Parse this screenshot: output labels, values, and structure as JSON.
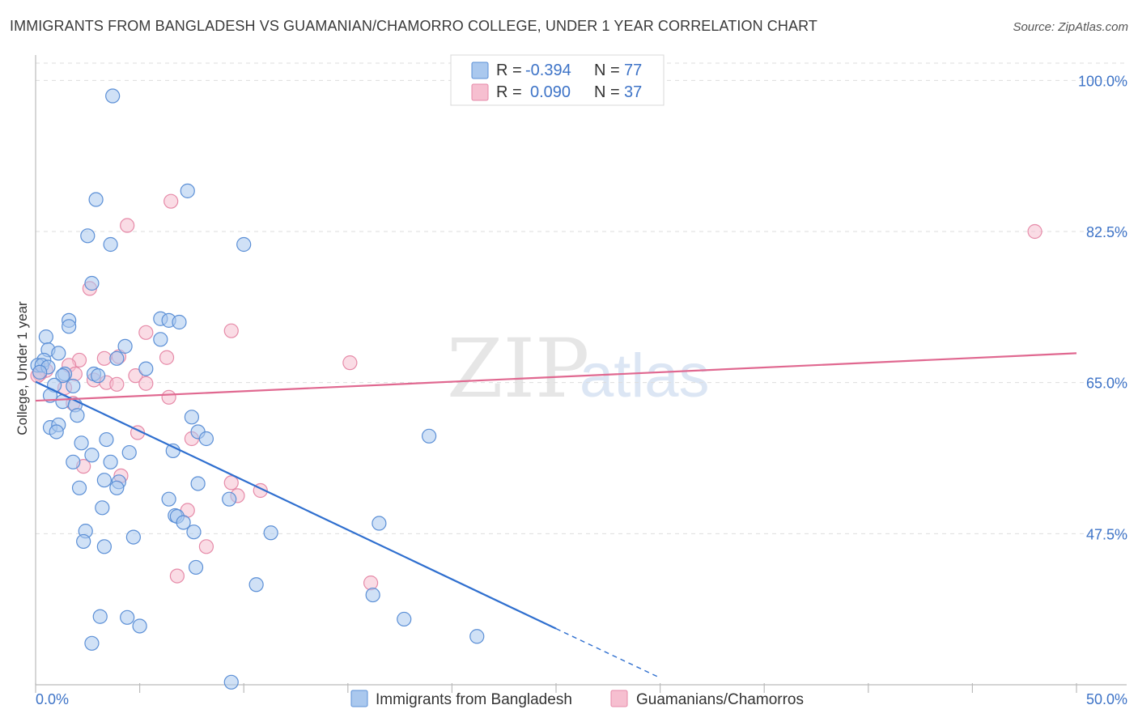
{
  "title": "IMMIGRANTS FROM BANGLADESH VS GUAMANIAN/CHAMORRO COLLEGE, UNDER 1 YEAR CORRELATION CHART",
  "source": "Source: ZipAtlas.com",
  "watermark": {
    "zip": "ZIP",
    "atlas": "atlas"
  },
  "colors": {
    "blue_fill": "#aac8ee",
    "blue_stroke": "#5b8fd6",
    "blue_line": "#2f6fcf",
    "pink_fill": "#f6bfd0",
    "pink_stroke": "#e68aa8",
    "pink_line": "#e06890",
    "tick_text": "#3d73c7",
    "grid": "#dddddd"
  },
  "legend": {
    "series1": {
      "r_label": "R =",
      "r_value": "-0.394",
      "n_label": "N =",
      "n_value": "77"
    },
    "series2": {
      "r_label": "R =",
      "r_value": "0.090",
      "n_label": "N =",
      "n_value": "37"
    }
  },
  "chart_data": {
    "type": "scatter",
    "title": "IMMIGRANTS FROM BANGLADESH VS GUAMANIAN/CHAMORRO COLLEGE, UNDER 1 YEAR CORRELATION CHART",
    "xlabel": "",
    "ylabel": "College, Under 1 year",
    "xlim": [
      0,
      50
    ],
    "ylim": [
      30,
      102
    ],
    "x_tick_labels": [
      "0.0%",
      "50.0%"
    ],
    "y_ticks": [
      100,
      82.5,
      65,
      47.5
    ],
    "y_tick_labels": [
      "100.0%",
      "82.5%",
      "65.0%",
      "47.5%"
    ],
    "grid": true,
    "legend_position": "top-center",
    "series": [
      {
        "name": "Immigrants from Bangladesh",
        "color": "#aac8ee",
        "trend": {
          "x0": 0,
          "y0": 65.1,
          "x1": 25,
          "y1": 36.5,
          "dashed_to_x": 30,
          "dashed_to_y": 30.8
        },
        "points": [
          [
            3.7,
            98.2
          ],
          [
            7.3,
            87.2
          ],
          [
            2.9,
            86.2
          ],
          [
            2.5,
            82.0
          ],
          [
            3.6,
            81.0
          ],
          [
            10.0,
            81.0
          ],
          [
            2.7,
            76.5
          ],
          [
            1.6,
            72.2
          ],
          [
            6.0,
            72.4
          ],
          [
            6.4,
            72.2
          ],
          [
            6.9,
            72.0
          ],
          [
            1.6,
            71.5
          ],
          [
            0.5,
            70.3
          ],
          [
            6.0,
            70.0
          ],
          [
            4.3,
            69.2
          ],
          [
            0.6,
            68.8
          ],
          [
            1.1,
            68.4
          ],
          [
            3.9,
            67.8
          ],
          [
            0.4,
            67.6
          ],
          [
            0.1,
            67.0
          ],
          [
            0.3,
            67.0
          ],
          [
            0.6,
            66.8
          ],
          [
            5.3,
            66.6
          ],
          [
            0.2,
            66.2
          ],
          [
            1.4,
            66.0
          ],
          [
            1.3,
            65.8
          ],
          [
            2.8,
            66.0
          ],
          [
            3.0,
            65.8
          ],
          [
            0.9,
            64.7
          ],
          [
            1.8,
            64.6
          ],
          [
            0.7,
            63.5
          ],
          [
            1.3,
            62.8
          ],
          [
            1.9,
            62.4
          ],
          [
            2.0,
            61.2
          ],
          [
            7.5,
            61.0
          ],
          [
            0.7,
            59.8
          ],
          [
            1.1,
            60.1
          ],
          [
            1.0,
            59.3
          ],
          [
            7.8,
            59.3
          ],
          [
            18.9,
            58.8
          ],
          [
            8.2,
            58.5
          ],
          [
            3.4,
            58.4
          ],
          [
            2.2,
            58.0
          ],
          [
            6.6,
            57.1
          ],
          [
            4.5,
            56.9
          ],
          [
            2.7,
            56.6
          ],
          [
            1.8,
            55.8
          ],
          [
            3.6,
            55.8
          ],
          [
            3.3,
            53.7
          ],
          [
            4.0,
            53.5
          ],
          [
            7.8,
            53.3
          ],
          [
            3.9,
            52.8
          ],
          [
            2.1,
            52.8
          ],
          [
            6.4,
            51.5
          ],
          [
            9.3,
            51.5
          ],
          [
            3.2,
            50.5
          ],
          [
            6.7,
            49.6
          ],
          [
            6.8,
            49.5
          ],
          [
            7.1,
            48.8
          ],
          [
            16.5,
            48.7
          ],
          [
            2.4,
            47.8
          ],
          [
            7.6,
            47.7
          ],
          [
            11.3,
            47.6
          ],
          [
            4.7,
            47.1
          ],
          [
            2.3,
            46.6
          ],
          [
            3.3,
            46.0
          ],
          [
            7.7,
            43.6
          ],
          [
            10.6,
            41.6
          ],
          [
            16.2,
            40.4
          ],
          [
            3.1,
            37.9
          ],
          [
            4.4,
            37.8
          ],
          [
            17.7,
            37.6
          ],
          [
            5.0,
            36.8
          ],
          [
            21.2,
            35.6
          ],
          [
            2.7,
            34.8
          ],
          [
            9.4,
            30.3
          ]
        ]
      },
      {
        "name": "Guamanians/Chamorros",
        "color": "#f6bfd0",
        "trend": {
          "x0": 0,
          "y0": 62.9,
          "x1": 50,
          "y1": 68.4
        },
        "points": [
          [
            6.5,
            86.0
          ],
          [
            4.4,
            83.2
          ],
          [
            48.0,
            82.5
          ],
          [
            2.6,
            75.9
          ],
          [
            9.4,
            71.0
          ],
          [
            5.3,
            70.8
          ],
          [
            6.3,
            67.9
          ],
          [
            4.0,
            68.0
          ],
          [
            3.3,
            67.8
          ],
          [
            2.1,
            67.6
          ],
          [
            15.1,
            67.3
          ],
          [
            1.6,
            67.0
          ],
          [
            0.5,
            66.4
          ],
          [
            1.9,
            66.0
          ],
          [
            0.2,
            66.0
          ],
          [
            0.1,
            65.8
          ],
          [
            4.8,
            65.8
          ],
          [
            2.8,
            65.3
          ],
          [
            3.4,
            65.0
          ],
          [
            3.9,
            64.8
          ],
          [
            5.3,
            64.9
          ],
          [
            1.4,
            64.4
          ],
          [
            6.4,
            63.3
          ],
          [
            1.8,
            62.6
          ],
          [
            4.9,
            59.2
          ],
          [
            7.5,
            58.5
          ],
          [
            2.3,
            55.3
          ],
          [
            4.1,
            54.2
          ],
          [
            9.4,
            53.4
          ],
          [
            10.8,
            52.5
          ],
          [
            9.7,
            51.9
          ],
          [
            7.3,
            50.2
          ],
          [
            8.2,
            46.0
          ],
          [
            6.8,
            42.6
          ],
          [
            16.1,
            41.8
          ]
        ]
      }
    ]
  }
}
